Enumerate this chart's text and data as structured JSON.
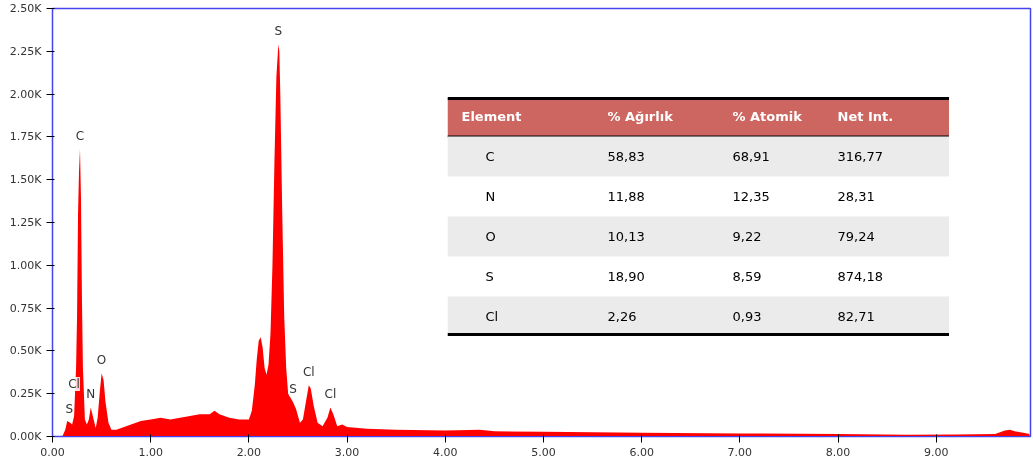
{
  "chart_data": [
    {
      "type": "area",
      "x": [
        0.1,
        0.13,
        0.15,
        0.18,
        0.2,
        0.22,
        0.24,
        0.25,
        0.26,
        0.27,
        0.28,
        0.29,
        0.3,
        0.31,
        0.33,
        0.35,
        0.37,
        0.39,
        0.41,
        0.44,
        0.46,
        0.48,
        0.5,
        0.52,
        0.54,
        0.57,
        0.6,
        0.65,
        0.7,
        0.8,
        0.9,
        1.0,
        1.1,
        1.2,
        1.3,
        1.4,
        1.5,
        1.6,
        1.65,
        1.7,
        1.8,
        1.9,
        2.0,
        2.03,
        2.06,
        2.08,
        2.1,
        2.12,
        2.14,
        2.16,
        2.18,
        2.2,
        2.22,
        2.24,
        2.26,
        2.28,
        2.3,
        2.31,
        2.32,
        2.34,
        2.36,
        2.38,
        2.4,
        2.43,
        2.45,
        2.48,
        2.52,
        2.55,
        2.58,
        2.61,
        2.63,
        2.66,
        2.7,
        2.75,
        2.8,
        2.83,
        2.86,
        2.9,
        2.95,
        3.0,
        3.2,
        3.5,
        4.0,
        4.35,
        4.5,
        5.0,
        6.0,
        7.0,
        8.0,
        8.7,
        9.2,
        9.6,
        9.7,
        9.75,
        9.8,
        9.9,
        9.95
      ],
      "series": [
        {
          "color": "#ff0000",
          "values": [
            0,
            40,
            90,
            80,
            70,
            120,
            400,
            700,
            1300,
            1550,
            1680,
            1400,
            800,
            400,
            100,
            70,
            100,
            170,
            120,
            50,
            110,
            250,
            370,
            330,
            200,
            80,
            40,
            40,
            50,
            70,
            90,
            100,
            110,
            100,
            110,
            120,
            130,
            130,
            150,
            130,
            110,
            100,
            100,
            150,
            300,
            450,
            560,
            580,
            520,
            400,
            360,
            420,
            600,
            1000,
            1600,
            2100,
            2290,
            2250,
            2000,
            1300,
            700,
            400,
            250,
            220,
            200,
            160,
            80,
            100,
            200,
            300,
            280,
            180,
            80,
            60,
            110,
            170,
            130,
            60,
            70,
            55,
            45,
            40,
            35,
            40,
            30,
            28,
            22,
            18,
            15,
            10,
            12,
            15,
            35,
            40,
            30,
            20,
            15
          ]
        }
      ],
      "xlim": [
        0,
        9.96
      ],
      "ylim": [
        0,
        2500
      ],
      "xticks": [
        {
          "value": 0,
          "label": "0.00"
        },
        {
          "value": 1,
          "label": "1.00"
        },
        {
          "value": 2,
          "label": "2.00"
        },
        {
          "value": 3,
          "label": "3.00"
        },
        {
          "value": 4,
          "label": "4.00"
        },
        {
          "value": 5,
          "label": "5.00"
        },
        {
          "value": 6,
          "label": "6.00"
        },
        {
          "value": 7,
          "label": "7.00"
        },
        {
          "value": 8,
          "label": "8.00"
        },
        {
          "value": 9,
          "label": "9.00"
        }
      ],
      "yticks": [
        {
          "value": 0,
          "label": "0.00K"
        },
        {
          "value": 250,
          "label": "0.25K"
        },
        {
          "value": 500,
          "label": "0.50K"
        },
        {
          "value": 750,
          "label": "0.75K"
        },
        {
          "value": 1000,
          "label": "1.00K"
        },
        {
          "value": 1250,
          "label": "1.25K"
        },
        {
          "value": 1500,
          "label": "1.50K"
        },
        {
          "value": 1750,
          "label": "1.75K"
        },
        {
          "value": 2000,
          "label": "2.00K"
        },
        {
          "value": 2250,
          "label": "2.25K"
        },
        {
          "value": 2500,
          "label": "2.50K"
        }
      ],
      "grid": false,
      "annotations": [
        {
          "text": "C",
          "x": 0.28,
          "y": 1680
        },
        {
          "text": "S",
          "x": 2.3,
          "y": 2290
        },
        {
          "text": "O",
          "x": 0.5,
          "y": 370
        },
        {
          "text": "N",
          "x": 0.39,
          "y": 170
        },
        {
          "text": "S",
          "x": 0.17,
          "y": 85
        },
        {
          "text": "Cl",
          "x": 0.22,
          "y": 230
        },
        {
          "text": "S",
          "x": 2.45,
          "y": 200
        },
        {
          "text": "Cl",
          "x": 2.61,
          "y": 300
        },
        {
          "text": "Cl",
          "x": 2.83,
          "y": 170
        }
      ]
    },
    {
      "type": "other",
      "ylabel": "Element",
      "categories": [
        "% Ağırlık",
        "% Atomik",
        "Net Int."
      ],
      "y_categories": [
        "C",
        "N",
        "O",
        "S",
        "Cl"
      ],
      "cell_labels": [
        [
          "58,83",
          "68,91",
          "316,77"
        ],
        [
          "11,88",
          "12,35",
          "28,31"
        ],
        [
          "10,13",
          "9,22",
          "79,24"
        ],
        [
          "18,90",
          "8,59",
          "874,18"
        ],
        [
          "2,26",
          "0,93",
          "82,71"
        ]
      ]
    }
  ]
}
